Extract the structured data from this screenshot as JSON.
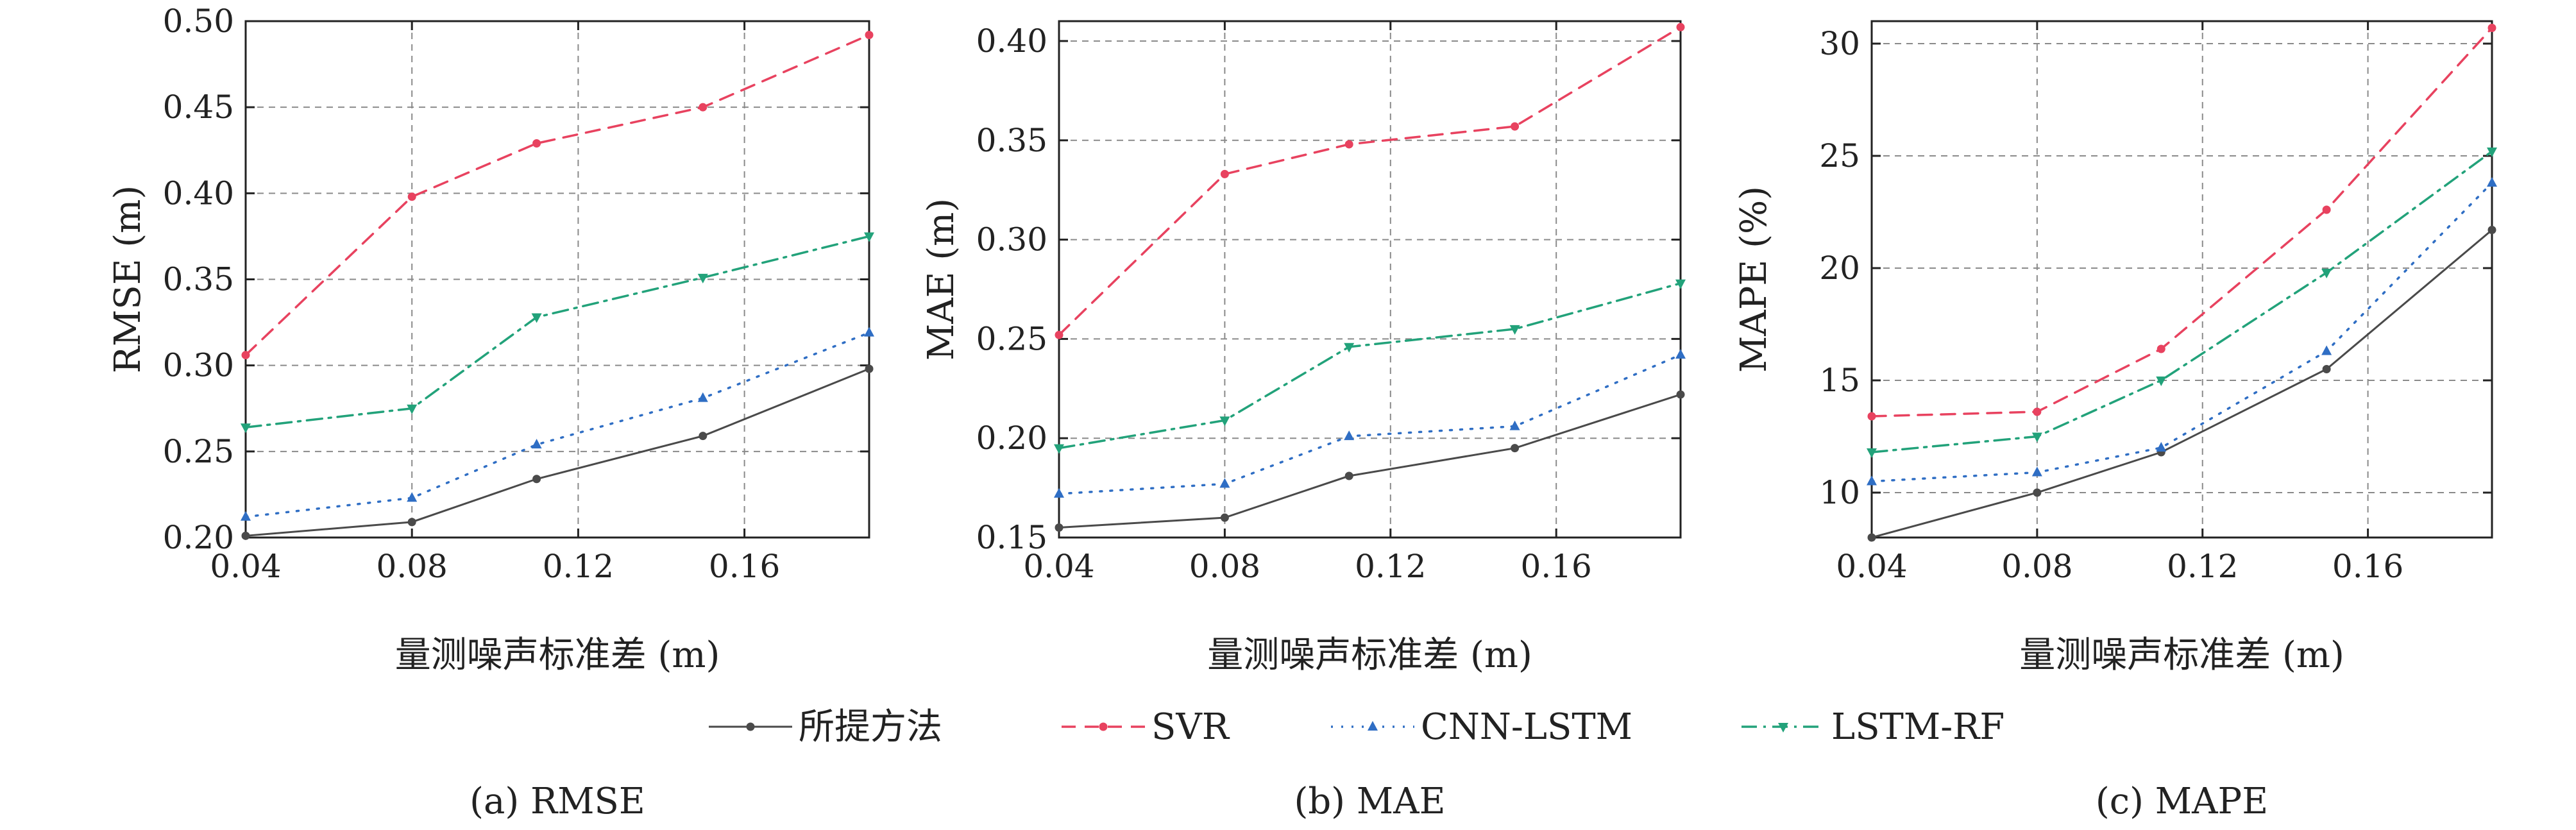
{
  "colors": {
    "proposed": "#4a4a4a",
    "svr": "#e8425f",
    "cnn_lstm": "#2f6ec4",
    "lstm_rf": "#22a27a"
  },
  "legend": [
    "所提方法",
    "SVR",
    "CNN-LSTM",
    "LSTM-RF"
  ],
  "chart_data": [
    {
      "type": "line",
      "caption": "(a) RMSE",
      "xlabel": "量测噪声标准差 (m)",
      "ylabel": "RMSE (m)",
      "xlim": [
        0.04,
        0.19
      ],
      "ylim": [
        0.2,
        0.5
      ],
      "xticks": [
        "0.04",
        "0.08",
        "0.12",
        "0.16"
      ],
      "yticks": [
        "0.20",
        "0.25",
        "0.30",
        "0.35",
        "0.40",
        "0.45",
        "0.50"
      ],
      "x": [
        0.04,
        0.08,
        0.11,
        0.15,
        0.19
      ],
      "grid": true,
      "series": [
        {
          "name": "所提方法",
          "values": [
            0.201,
            0.209,
            0.234,
            0.259,
            0.298
          ]
        },
        {
          "name": "SVR",
          "values": [
            0.306,
            0.398,
            0.429,
            0.45,
            0.492
          ]
        },
        {
          "name": "CNN-LSTM",
          "values": [
            0.212,
            0.223,
            0.254,
            0.281,
            0.319
          ]
        },
        {
          "name": "LSTM-RF",
          "values": [
            0.264,
            0.275,
            0.328,
            0.351,
            0.375
          ]
        }
      ]
    },
    {
      "type": "line",
      "caption": "(b) MAE",
      "xlabel": "量测噪声标准差 (m)",
      "ylabel": "MAE (m)",
      "xlim": [
        0.04,
        0.19
      ],
      "ylim": [
        0.15,
        0.41
      ],
      "xticks": [
        "0.04",
        "0.08",
        "0.12",
        "0.16"
      ],
      "yticks": [
        "0.15",
        "0.20",
        "0.25",
        "0.30",
        "0.35",
        "0.40"
      ],
      "x": [
        0.04,
        0.08,
        0.11,
        0.15,
        0.19
      ],
      "grid": true,
      "series": [
        {
          "name": "所提方法",
          "values": [
            0.155,
            0.16,
            0.181,
            0.195,
            0.222
          ]
        },
        {
          "name": "SVR",
          "values": [
            0.252,
            0.333,
            0.348,
            0.357,
            0.407
          ]
        },
        {
          "name": "CNN-LSTM",
          "values": [
            0.172,
            0.177,
            0.201,
            0.206,
            0.242
          ]
        },
        {
          "name": "LSTM-RF",
          "values": [
            0.195,
            0.209,
            0.246,
            0.255,
            0.278
          ]
        }
      ]
    },
    {
      "type": "line",
      "caption": "(c) MAPE",
      "xlabel": "量测噪声标准差 (m)",
      "ylabel": "MAPE (%)",
      "xlim": [
        0.04,
        0.19
      ],
      "ylim": [
        8,
        31
      ],
      "xticks": [
        "0.04",
        "0.08",
        "0.12",
        "0.16"
      ],
      "yticks": [
        "10",
        "15",
        "20",
        "25",
        "30"
      ],
      "x": [
        0.04,
        0.08,
        0.11,
        0.15,
        0.19
      ],
      "grid": true,
      "series": [
        {
          "name": "所提方法",
          "values": [
            8.0,
            10.0,
            11.8,
            15.5,
            21.7
          ]
        },
        {
          "name": "SVR",
          "values": [
            13.4,
            13.6,
            16.4,
            22.6,
            30.7
          ]
        },
        {
          "name": "CNN-LSTM",
          "values": [
            10.5,
            10.9,
            12.0,
            16.3,
            23.8
          ]
        },
        {
          "name": "LSTM-RF",
          "values": [
            11.8,
            12.5,
            15.0,
            19.8,
            25.2
          ]
        }
      ]
    }
  ]
}
